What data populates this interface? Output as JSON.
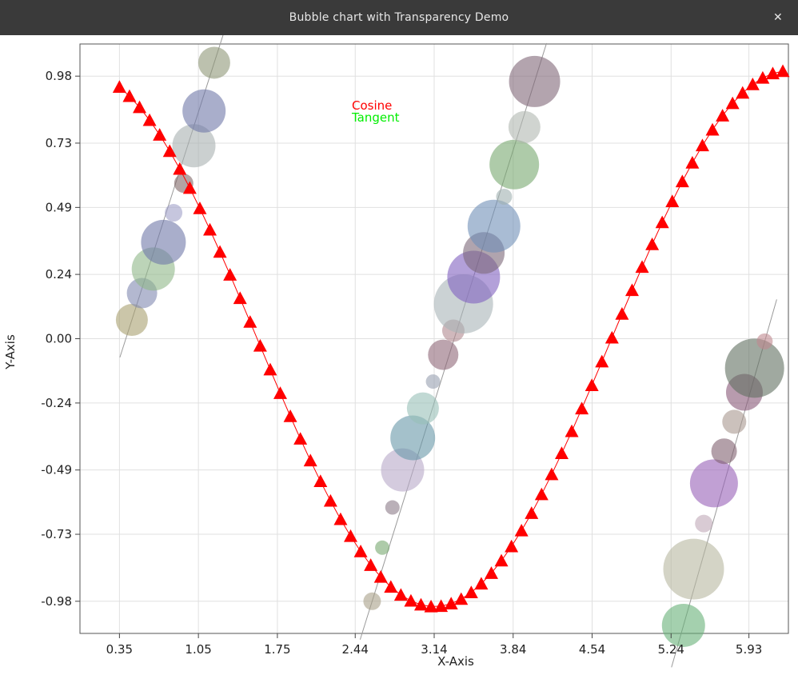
{
  "window": {
    "title": "Bubble chart with Transparency Demo",
    "close_glyph": "✕"
  },
  "chart_data": {
    "type": "scatter",
    "title": "",
    "xlabel": "X-Axis",
    "ylabel": "Y-Axis",
    "xlim": [
      0.0,
      6.28
    ],
    "ylim": [
      -1.1,
      1.1
    ],
    "xticks": [
      "0.35",
      "1.05",
      "1.75",
      "2.44",
      "3.14",
      "3.84",
      "4.54",
      "5.24",
      "5.93"
    ],
    "xtick_values": [
      0.35,
      1.05,
      1.75,
      2.44,
      3.14,
      3.84,
      4.54,
      5.24,
      5.93
    ],
    "yticks": [
      "0.98",
      "0.73",
      "0.49",
      "0.24",
      "0.00",
      "-0.24",
      "-0.49",
      "-0.73",
      "-0.98"
    ],
    "ytick_values": [
      0.98,
      0.73,
      0.49,
      0.24,
      0.0,
      -0.24,
      -0.49,
      -0.73,
      -0.98
    ],
    "grid": true,
    "legend": {
      "placement": "top-center",
      "entries": [
        {
          "name": "Cosine",
          "color": "#ff0000"
        },
        {
          "name": "Tangent",
          "color": "#00ee00"
        }
      ]
    },
    "series": [
      {
        "name": "Cosine",
        "color": "#ff0000",
        "marker": "triangle",
        "x_start": 0.35,
        "x_step": 0.0891,
        "count": 67,
        "function": "cos"
      },
      {
        "name": "Tangent",
        "color": "#999999",
        "marker": "bubble",
        "points": [
          {
            "x": 0.46,
            "y": 0.07,
            "r": 20,
            "color": "#a8a070"
          },
          {
            "x": 0.55,
            "y": 0.17,
            "r": 19,
            "color": "#8088b0"
          },
          {
            "x": 0.65,
            "y": 0.26,
            "r": 27,
            "color": "#90b888"
          },
          {
            "x": 0.74,
            "y": 0.36,
            "r": 28,
            "color": "#7078a8"
          },
          {
            "x": 0.83,
            "y": 0.47,
            "r": 11,
            "color": "#a0a0c8"
          },
          {
            "x": 0.92,
            "y": 0.58,
            "r": 12,
            "color": "#806868"
          },
          {
            "x": 1.01,
            "y": 0.72,
            "r": 27,
            "color": "#a8b0b0"
          },
          {
            "x": 1.1,
            "y": 0.85,
            "r": 27,
            "color": "#7078a8"
          },
          {
            "x": 1.19,
            "y": 1.03,
            "r": 20,
            "color": "#909878"
          },
          {
            "x": 2.59,
            "y": -0.98,
            "r": 11,
            "color": "#a8a088"
          },
          {
            "x": 2.68,
            "y": -0.78,
            "r": 9,
            "color": "#78a870"
          },
          {
            "x": 2.77,
            "y": -0.63,
            "r": 9,
            "color": "#8c7c88"
          },
          {
            "x": 2.86,
            "y": -0.49,
            "r": 27,
            "color": "#b8a8c8"
          },
          {
            "x": 2.95,
            "y": -0.37,
            "r": 28,
            "color": "#6898a8"
          },
          {
            "x": 3.04,
            "y": -0.26,
            "r": 20,
            "color": "#98c0b8"
          },
          {
            "x": 3.13,
            "y": -0.16,
            "r": 9,
            "color": "#98a0b0"
          },
          {
            "x": 3.22,
            "y": -0.06,
            "r": 19,
            "color": "#906878"
          },
          {
            "x": 3.31,
            "y": 0.03,
            "r": 14,
            "color": "#b08890"
          },
          {
            "x": 3.4,
            "y": 0.13,
            "r": 37,
            "color": "#a8b4b8"
          },
          {
            "x": 3.49,
            "y": 0.23,
            "r": 33,
            "color": "#8060c0"
          },
          {
            "x": 3.58,
            "y": 0.32,
            "r": 26,
            "color": "#7c6878"
          },
          {
            "x": 3.67,
            "y": 0.42,
            "r": 33,
            "color": "#7090b8"
          },
          {
            "x": 3.76,
            "y": 0.53,
            "r": 10,
            "color": "#a0b0b0"
          },
          {
            "x": 3.85,
            "y": 0.65,
            "r": 31,
            "color": "#78a870"
          },
          {
            "x": 3.94,
            "y": 0.79,
            "r": 20,
            "color": "#b0b8b0"
          },
          {
            "x": 4.03,
            "y": 0.96,
            "r": 32,
            "color": "#806878"
          },
          {
            "x": 5.35,
            "y": -1.07,
            "r": 27,
            "color": "#68b078"
          },
          {
            "x": 5.44,
            "y": -0.86,
            "r": 38,
            "color": "#b8b8a0"
          },
          {
            "x": 5.53,
            "y": -0.69,
            "r": 11,
            "color": "#c0a8b8"
          },
          {
            "x": 5.62,
            "y": -0.54,
            "r": 30,
            "color": "#9860b8"
          },
          {
            "x": 5.71,
            "y": -0.42,
            "r": 16,
            "color": "#806070"
          },
          {
            "x": 5.8,
            "y": -0.31,
            "r": 15,
            "color": "#a89890"
          },
          {
            "x": 5.89,
            "y": -0.2,
            "r": 23,
            "color": "#885878"
          },
          {
            "x": 5.98,
            "y": -0.11,
            "r": 37,
            "color": "#607060"
          },
          {
            "x": 6.07,
            "y": -0.01,
            "r": 10,
            "color": "#c08890"
          }
        ]
      }
    ]
  }
}
